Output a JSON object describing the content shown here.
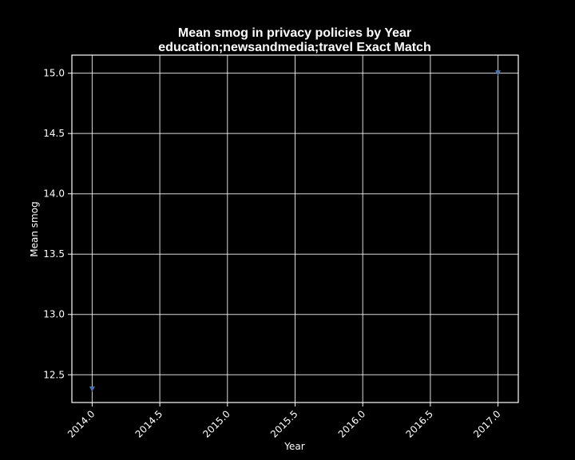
{
  "chart_data": {
    "type": "scatter",
    "title": "Mean smog in privacy policies by Year",
    "subtitle": "education;newsandmedia;travel Exact Match",
    "xlabel": "Year",
    "ylabel": "Mean smog",
    "xlim": [
      2013.85,
      2017.15
    ],
    "ylim": [
      12.27,
      15.15
    ],
    "xticks": [
      2014.0,
      2014.5,
      2015.0,
      2015.5,
      2016.0,
      2016.5,
      2017.0
    ],
    "xtick_labels": [
      "2014.0",
      "2014.5",
      "2015.0",
      "2015.5",
      "2016.0",
      "2016.5",
      "2017.0"
    ],
    "yticks": [
      12.5,
      13.0,
      13.5,
      14.0,
      14.5,
      15.0
    ],
    "ytick_labels": [
      "12.5",
      "13.0",
      "13.5",
      "14.0",
      "14.5",
      "15.0"
    ],
    "grid": true,
    "marker": "triangle-down",
    "series": [
      {
        "x": [
          2014,
          2017
        ],
        "y": [
          12.38,
          15.0
        ],
        "color": "#4c72b0"
      }
    ],
    "colors": {
      "background": "#000000",
      "foreground": "#ffffff",
      "point": "#4c72b0"
    }
  }
}
